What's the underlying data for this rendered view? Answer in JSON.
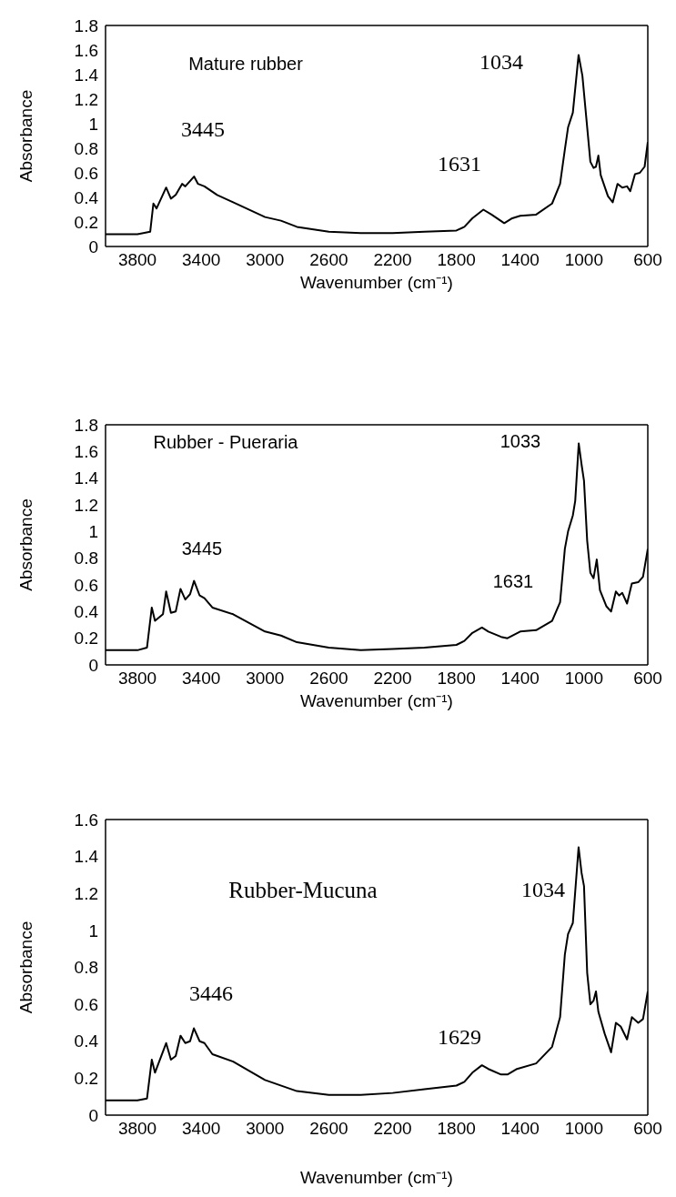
{
  "chart_data": [
    {
      "type": "line",
      "xlabel": "Wavenumber (cm⁻¹)",
      "ylabel": "Absorbance",
      "color": "#000000",
      "x": [
        4000,
        3800,
        3720,
        3700,
        3680,
        3620,
        3590,
        3560,
        3520,
        3500,
        3445,
        3420,
        3380,
        3300,
        3200,
        3000,
        2900,
        2800,
        2600,
        2400,
        2200,
        2000,
        1800,
        1750,
        1700,
        1631,
        1580,
        1500,
        1450,
        1400,
        1300,
        1200,
        1150,
        1120,
        1100,
        1070,
        1034,
        1010,
        990,
        960,
        940,
        925,
        910,
        895,
        850,
        820,
        790,
        760,
        730,
        710,
        680,
        650,
        620,
        600
      ],
      "values": [
        0.1,
        0.1,
        0.12,
        0.35,
        0.31,
        0.48,
        0.39,
        0.42,
        0.51,
        0.49,
        0.57,
        0.51,
        0.49,
        0.42,
        0.36,
        0.24,
        0.21,
        0.16,
        0.12,
        0.11,
        0.11,
        0.12,
        0.13,
        0.16,
        0.23,
        0.3,
        0.26,
        0.19,
        0.23,
        0.25,
        0.26,
        0.35,
        0.51,
        0.79,
        0.97,
        1.09,
        1.56,
        1.39,
        1.11,
        0.69,
        0.64,
        0.65,
        0.74,
        0.58,
        0.41,
        0.36,
        0.51,
        0.48,
        0.49,
        0.45,
        0.59,
        0.6,
        0.65,
        0.85
      ],
      "xlim": [
        4000,
        600
      ],
      "xticks": [
        3800,
        3400,
        3000,
        2600,
        2200,
        1800,
        1400,
        1000,
        600
      ],
      "ylim": [
        0,
        1.8
      ],
      "yticks": [
        0,
        0.2,
        0.4,
        0.6,
        0.8,
        1,
        1.2,
        1.4,
        1.6,
        1.8
      ],
      "annotations": [
        "Mature rubber",
        "3445",
        "1631",
        "1034"
      ]
    },
    {
      "type": "line",
      "xlabel": "Wavenumber (cm⁻¹)",
      "ylabel": "Absorbance",
      "color": "#000000",
      "x": [
        4000,
        3800,
        3740,
        3710,
        3690,
        3640,
        3620,
        3590,
        3560,
        3530,
        3500,
        3470,
        3445,
        3410,
        3380,
        3330,
        3200,
        3000,
        2900,
        2800,
        2600,
        2400,
        2200,
        2000,
        1800,
        1750,
        1700,
        1640,
        1600,
        1520,
        1480,
        1400,
        1300,
        1200,
        1150,
        1120,
        1100,
        1070,
        1055,
        1033,
        1015,
        1000,
        980,
        960,
        940,
        920,
        900,
        860,
        830,
        800,
        780,
        760,
        730,
        700,
        660,
        630,
        600
      ],
      "values": [
        0.11,
        0.11,
        0.13,
        0.43,
        0.33,
        0.38,
        0.55,
        0.39,
        0.4,
        0.57,
        0.49,
        0.53,
        0.63,
        0.52,
        0.5,
        0.43,
        0.38,
        0.25,
        0.22,
        0.17,
        0.13,
        0.11,
        0.12,
        0.13,
        0.15,
        0.18,
        0.24,
        0.28,
        0.25,
        0.21,
        0.2,
        0.25,
        0.26,
        0.33,
        0.47,
        0.87,
        1.0,
        1.12,
        1.23,
        1.66,
        1.5,
        1.38,
        0.93,
        0.69,
        0.65,
        0.79,
        0.56,
        0.44,
        0.4,
        0.55,
        0.52,
        0.54,
        0.46,
        0.61,
        0.62,
        0.66,
        0.87
      ],
      "xlim": [
        4000,
        600
      ],
      "xticks": [
        3800,
        3400,
        3000,
        2600,
        2200,
        1800,
        1400,
        1000,
        600
      ],
      "ylim": [
        0,
        1.8
      ],
      "yticks": [
        0,
        0.2,
        0.4,
        0.6,
        0.8,
        1,
        1.2,
        1.4,
        1.6,
        1.8
      ],
      "annotations": [
        "Rubber - Pueraria",
        "3445",
        "1631",
        "1033"
      ]
    },
    {
      "type": "line",
      "xlabel": "Wavenumber (cm⁻¹)",
      "ylabel": "Absorbance",
      "color": "#000000",
      "x": [
        4000,
        3800,
        3740,
        3710,
        3690,
        3620,
        3590,
        3560,
        3530,
        3500,
        3470,
        3446,
        3410,
        3380,
        3330,
        3200,
        3000,
        2800,
        2600,
        2400,
        2200,
        2000,
        1900,
        1800,
        1750,
        1700,
        1640,
        1600,
        1520,
        1480,
        1420,
        1300,
        1200,
        1150,
        1120,
        1100,
        1070,
        1034,
        1015,
        1000,
        980,
        960,
        940,
        925,
        910,
        870,
        830,
        800,
        770,
        730,
        700,
        660,
        630,
        600
      ],
      "values": [
        0.08,
        0.08,
        0.09,
        0.3,
        0.23,
        0.39,
        0.3,
        0.32,
        0.43,
        0.39,
        0.4,
        0.47,
        0.4,
        0.39,
        0.33,
        0.29,
        0.19,
        0.13,
        0.11,
        0.11,
        0.12,
        0.14,
        0.15,
        0.16,
        0.18,
        0.23,
        0.27,
        0.25,
        0.22,
        0.22,
        0.25,
        0.28,
        0.37,
        0.53,
        0.87,
        0.98,
        1.04,
        1.45,
        1.31,
        1.24,
        0.77,
        0.6,
        0.62,
        0.67,
        0.56,
        0.44,
        0.34,
        0.5,
        0.48,
        0.41,
        0.53,
        0.5,
        0.52,
        0.67
      ],
      "xlim": [
        4000,
        600
      ],
      "xticks": [
        3800,
        3400,
        3000,
        2600,
        2200,
        1800,
        1400,
        1000,
        600
      ],
      "ylim": [
        0,
        1.6
      ],
      "yticks": [
        0,
        0.2,
        0.4,
        0.6,
        0.8,
        1,
        1.2,
        1.4,
        1.6
      ],
      "annotations": [
        "Rubber-Mucuna",
        "3446",
        "1629",
        "1034"
      ]
    }
  ]
}
